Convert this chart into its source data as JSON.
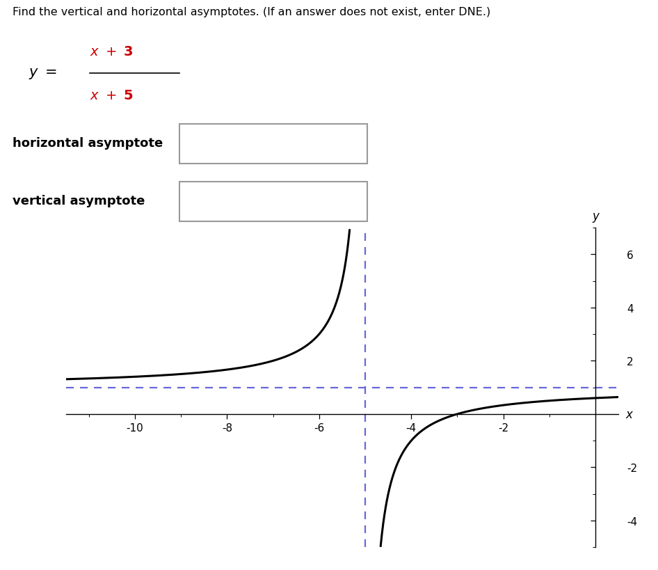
{
  "title_text": "Find the vertical and horizontal asymptotes. (If an answer does not exist, enter DNE.)",
  "label_horizontal": "horizontal asymptote",
  "label_vertical": "vertical asymptote",
  "vertical_asymptote": -5,
  "horizontal_asymptote": 1,
  "xmin": -11.5,
  "xmax": 0.5,
  "ymin": -5.0,
  "ymax": 7.0,
  "xticks": [
    -10,
    -8,
    -6,
    -4,
    -2
  ],
  "yticks": [
    -4,
    -2,
    2,
    4,
    6
  ],
  "curve_color": "#000000",
  "asymptote_color": "#6666dd",
  "background_color": "#ffffff",
  "text_color": "#000000",
  "red_color": "#cc0000",
  "box_edge_color": "#999999"
}
